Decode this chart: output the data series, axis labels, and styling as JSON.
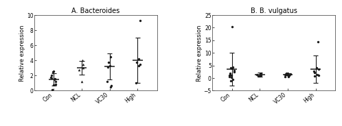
{
  "panel_A": {
    "title": "A. Bacteroides",
    "ylabel": "Relative expression",
    "categories": [
      "Con",
      "NCL",
      "VC30",
      "High"
    ],
    "ylim": [
      0,
      10
    ],
    "yticks": [
      0,
      2,
      4,
      6,
      8,
      10
    ],
    "means": [
      1.5,
      3.0,
      3.2,
      4.0
    ],
    "errors": [
      0.8,
      0.9,
      1.7,
      3.0
    ],
    "data_points": {
      "Con": [
        1.5,
        1.6,
        2.5,
        2.6,
        0.9,
        1.2,
        1.7,
        0.1,
        2.0,
        0.8,
        1.8
      ],
      "NCL": [
        3.5,
        2.8,
        4.0,
        3.0,
        1.2
      ],
      "VC30": [
        3.8,
        3.3,
        3.1,
        1.2,
        0.7,
        4.5,
        0.5
      ],
      "High": [
        9.3,
        4.2,
        3.5,
        1.0,
        3.8,
        3.3
      ]
    },
    "marker_styles": {
      "Con": "o",
      "NCL": "^",
      "VC30": "o",
      "High": "o"
    }
  },
  "panel_B": {
    "title": "B. B. vulgatus",
    "ylabel": "Relative expression",
    "categories": [
      "Con",
      "NCL",
      "VC30",
      "High"
    ],
    "ylim": [
      -5,
      25
    ],
    "yticks": [
      -5,
      0,
      5,
      10,
      15,
      20,
      25
    ],
    "means": [
      3.5,
      1.3,
      1.5,
      3.5
    ],
    "errors": [
      6.5,
      0.8,
      0.5,
      5.5
    ],
    "data_points": {
      "Con": [
        20.5,
        4.5,
        4.2,
        3.8,
        3.0,
        2.5,
        1.8,
        1.5,
        1.2,
        1.0,
        0.5,
        0.3,
        -0.5,
        -1.0
      ],
      "NCL": [
        1.8,
        1.5,
        1.2,
        1.0,
        0.8,
        0.9
      ],
      "VC30": [
        2.0,
        1.8,
        1.5,
        1.3,
        1.2,
        1.0,
        0.8,
        0.7,
        0.5,
        1.5,
        1.6
      ],
      "High": [
        14.5,
        4.0,
        3.5,
        2.8,
        2.2,
        1.5,
        1.2,
        0.8
      ]
    },
    "marker_styles": {
      "Con": "o",
      "NCL": "o",
      "VC30": "o",
      "High": "o"
    }
  },
  "dot_color": "#1a1a1a",
  "line_color": "#1a1a1a",
  "error_color": "#1a1a1a",
  "dot_size": 5,
  "font_size": 6,
  "title_font_size": 7,
  "tick_font_size": 5.5,
  "background_color": "#ffffff"
}
